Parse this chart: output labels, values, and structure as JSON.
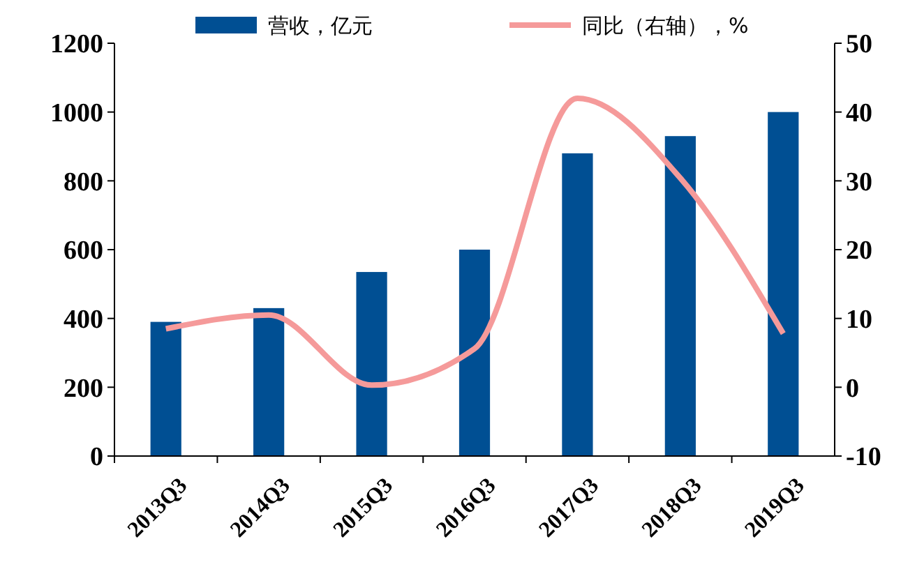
{
  "chart_data": {
    "type": "bar",
    "categories": [
      "2013Q3",
      "2014Q3",
      "2015Q3",
      "2016Q3",
      "2017Q3",
      "2018Q3",
      "2019Q3"
    ],
    "series": [
      {
        "name": "营收，亿元",
        "color": "#004f93",
        "values": [
          390,
          430,
          535,
          600,
          880,
          930,
          1000
        ]
      },
      {
        "name": "同比（右轴），%",
        "type": "line",
        "axis": "y2",
        "color": "#f59a9a",
        "values": [
          8.5,
          10.5,
          0.3,
          5.6,
          42,
          30.4,
          7.8
        ]
      }
    ],
    "ylim": [
      0,
      1200
    ],
    "yticks": [
      0,
      200,
      400,
      600,
      800,
      1000,
      1200
    ],
    "y2lim": [
      -10,
      50
    ],
    "y2ticks": [
      -10,
      0,
      10,
      20,
      30,
      40,
      50
    ],
    "legend": "top",
    "grid": false,
    "marker": "none"
  }
}
